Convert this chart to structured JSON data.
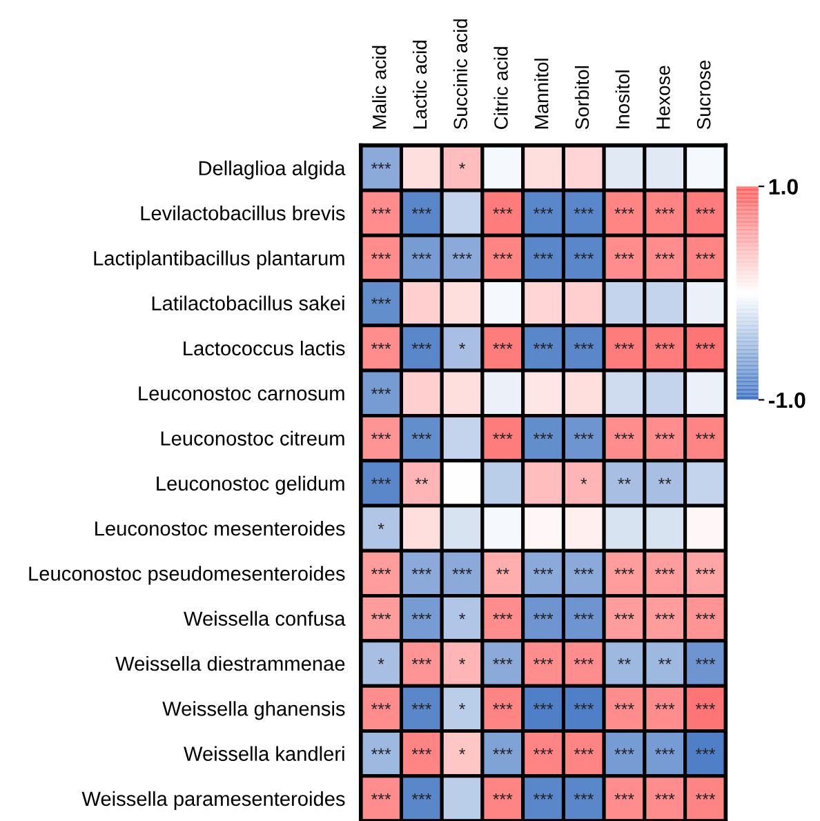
{
  "chart_data": {
    "type": "heatmap",
    "categories": [
      "Malic acid",
      "Lactic acid",
      "Succinic acid",
      "Citric acid",
      "Mannitol",
      "Sorbitol",
      "Inositol",
      "Hexose",
      "Sucrose"
    ],
    "y_categories": [
      "Dellaglioa algida",
      "Levilactobacillus brevis",
      "Lactiplantibacillus plantarum",
      "Latilactobacillus sakei",
      "Lactococcus lactis",
      "Leuconostoc carnosum",
      "Leuconostoc citreum",
      "Leuconostoc gelidum",
      "Leuconostoc mesenteroides",
      "Leuconostoc pseudomesenteroides",
      "Weissella confusa",
      "Weissella diestrammenae",
      "Weissella ghanensis",
      "Weissella kandleri",
      "Weissella paramesenteroides"
    ],
    "cells": [
      [
        -0.6,
        0.2,
        0.4,
        -0.05,
        0.2,
        0.25,
        -0.15,
        -0.15,
        -0.05
      ],
      [
        0.7,
        -0.85,
        -0.3,
        0.8,
        -0.85,
        -0.85,
        0.75,
        0.75,
        0.8
      ],
      [
        0.7,
        -0.7,
        -0.6,
        0.75,
        -0.85,
        -0.85,
        0.7,
        0.7,
        0.75
      ],
      [
        -0.8,
        0.3,
        0.2,
        -0.05,
        0.25,
        0.3,
        -0.3,
        -0.3,
        -0.1
      ],
      [
        0.7,
        -0.85,
        -0.45,
        0.8,
        -0.85,
        -0.85,
        0.8,
        0.8,
        0.85
      ],
      [
        -0.7,
        0.3,
        0.2,
        -0.1,
        0.15,
        0.2,
        -0.25,
        -0.3,
        -0.1
      ],
      [
        0.65,
        -0.8,
        -0.3,
        0.8,
        -0.8,
        -0.75,
        0.7,
        0.7,
        0.75
      ],
      [
        -0.85,
        0.45,
        0.0,
        -0.35,
        0.4,
        0.45,
        -0.45,
        -0.45,
        -0.3
      ],
      [
        -0.4,
        0.2,
        -0.2,
        -0.05,
        0.05,
        0.1,
        -0.2,
        -0.2,
        0.05
      ],
      [
        0.6,
        -0.6,
        -0.6,
        0.5,
        -0.6,
        -0.6,
        0.6,
        0.6,
        0.55
      ],
      [
        0.6,
        -0.7,
        -0.4,
        0.7,
        -0.75,
        -0.75,
        0.6,
        0.6,
        0.65
      ],
      [
        -0.45,
        0.65,
        0.45,
        -0.6,
        0.7,
        0.7,
        -0.5,
        -0.5,
        -0.75
      ],
      [
        0.7,
        -0.85,
        -0.35,
        0.75,
        -0.9,
        -0.9,
        0.7,
        0.7,
        0.85
      ],
      [
        -0.5,
        0.75,
        0.35,
        -0.65,
        0.75,
        0.75,
        -0.7,
        -0.7,
        -0.9
      ],
      [
        0.7,
        -0.85,
        -0.35,
        0.75,
        -0.85,
        -0.85,
        0.7,
        0.7,
        0.75
      ]
    ],
    "cell_labels": [
      [
        "***",
        null,
        "*",
        null,
        null,
        null,
        null,
        null,
        null
      ],
      [
        "***",
        "***",
        null,
        "***",
        "***",
        "***",
        "***",
        "***",
        "***"
      ],
      [
        "***",
        "***",
        "***",
        "***",
        "***",
        "***",
        "***",
        "***",
        "***"
      ],
      [
        "***",
        null,
        null,
        null,
        null,
        null,
        null,
        null,
        null
      ],
      [
        "***",
        "***",
        "*",
        "***",
        "***",
        "***",
        "***",
        "***",
        "***"
      ],
      [
        "***",
        null,
        null,
        null,
        null,
        null,
        null,
        null,
        null
      ],
      [
        "***",
        "***",
        null,
        "***",
        "***",
        "***",
        "***",
        "***",
        "***"
      ],
      [
        "***",
        "**",
        null,
        null,
        null,
        "*",
        "**",
        "**",
        null
      ],
      [
        "*",
        null,
        null,
        null,
        null,
        null,
        null,
        null,
        null
      ],
      [
        "***",
        "***",
        "***",
        "**",
        "***",
        "***",
        "***",
        "***",
        "***"
      ],
      [
        "***",
        "***",
        "*",
        "***",
        "***",
        "***",
        "***",
        "***",
        "***"
      ],
      [
        "*",
        "***",
        "*",
        "***",
        "***",
        "***",
        "**",
        "**",
        "***"
      ],
      [
        "***",
        "***",
        "*",
        "***",
        "***",
        "***",
        "***",
        "***",
        "***"
      ],
      [
        "***",
        "***",
        "*",
        "***",
        "***",
        "***",
        "***",
        "***",
        "***"
      ],
      [
        "***",
        "***",
        null,
        "***",
        "***",
        "***",
        "***",
        "***",
        "***"
      ]
    ],
    "clim": [
      -1.0,
      1.0
    ],
    "cticks": [
      {
        "value": 1.0,
        "label": "1.0"
      },
      {
        "value": -1.0,
        "label": "-1.0"
      }
    ]
  }
}
